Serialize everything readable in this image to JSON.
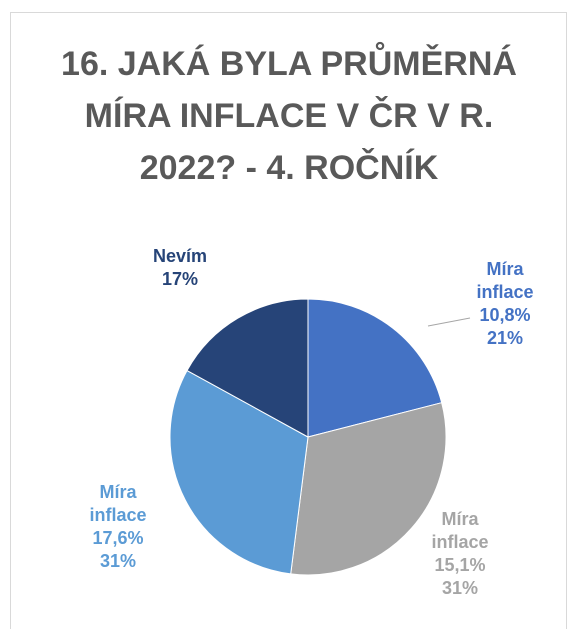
{
  "chart_data": {
    "type": "pie",
    "title": "16. JAKÁ BYLA PRŮMĚRNÁ MÍRA INFLACE V ČR V R. 2022? - 4. ROČNÍK",
    "categories": [
      "Míra inflace 10,8%",
      "Míra inflace 15,1%",
      "Míra inflace 17,6%",
      "Nevím"
    ],
    "values": [
      21,
      31,
      31,
      17
    ],
    "value_labels": [
      "21%",
      "31%",
      "31%",
      "17%"
    ],
    "colors": [
      "#4472c4",
      "#a5a5a5",
      "#5b9bd5",
      "#264478"
    ]
  }
}
